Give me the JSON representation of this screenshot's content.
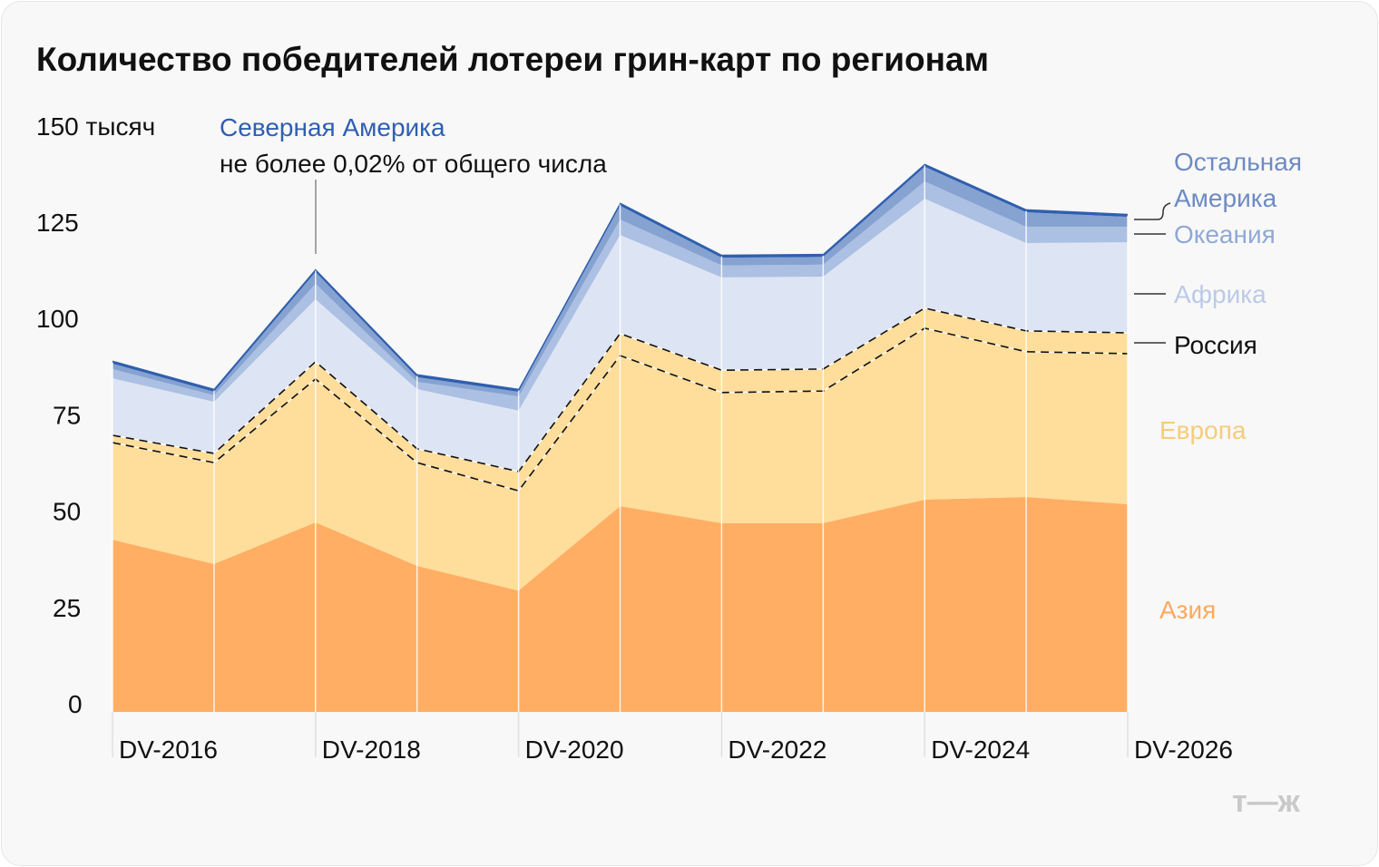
{
  "chart_data": {
    "type": "area",
    "stacked": true,
    "title": "Количество победителей лотереи грин-карт по регионам",
    "ylabel": "150 тысяч",
    "ylim": [
      0,
      150
    ],
    "yticks": [
      "0",
      "25",
      "50",
      "75",
      "100",
      "125",
      "150 тысяч"
    ],
    "x": [
      "DV-2016",
      "DV-2017",
      "DV-2018",
      "DV-2019",
      "DV-2020",
      "DV-2021",
      "DV-2022",
      "DV-2023",
      "DV-2024",
      "DV-2025",
      "DV-2026"
    ],
    "xtick_labels": [
      "DV-2016",
      "DV-2018",
      "DV-2020",
      "DV-2022",
      "DV-2024",
      "DV-2026"
    ],
    "grid": "vertical",
    "series": [
      {
        "name": "Азия",
        "color": "#ffae63",
        "label_color": "#ffa95b",
        "values": [
          44.7,
          38.4,
          49.2,
          37.9,
          31.5,
          53.4,
          49.0,
          49.0,
          55.1,
          55.8,
          53.9
        ]
      },
      {
        "name": "Европа",
        "color": "#ffdd9b",
        "label_color": "#f5cc7c",
        "values": [
          25.2,
          26.3,
          37.2,
          26.8,
          25.9,
          39.1,
          33.9,
          34.3,
          44.5,
          37.7,
          39.1
        ]
      },
      {
        "name": "Россия",
        "color": "#ffdd9b",
        "label_color": "#111111",
        "dashed": true,
        "values": [
          1.9,
          2.4,
          4.5,
          3.6,
          5.0,
          5.7,
          5.8,
          5.7,
          5.2,
          5.4,
          5.4
        ]
      },
      {
        "name": "Африка",
        "color": "#dde4f3",
        "label_color": "#bccae6",
        "values": [
          14.8,
          13.4,
          16.2,
          15.5,
          15.8,
          25.6,
          24.1,
          24.0,
          28.4,
          22.8,
          23.5
        ]
      },
      {
        "name": "Океания",
        "color": "#abc0e2",
        "label_color": "#90a9d6",
        "values": [
          2.4,
          1.7,
          4.0,
          1.9,
          3.7,
          4.0,
          3.1,
          3.1,
          4.5,
          4.2,
          4.0
        ]
      },
      {
        "name": "Остальная Америка",
        "color": "#86a2d1",
        "label_color": "#6e8bc3",
        "values": [
          1.4,
          0.9,
          3.1,
          1.2,
          1.2,
          3.6,
          2.0,
          2.0,
          3.8,
          3.8,
          2.6
        ]
      },
      {
        "name": "Северная Америка",
        "color": "#2f5fae",
        "label_color": "#2f5fb0",
        "values": [
          0.8,
          0.8,
          0.8,
          0.8,
          0.8,
          0.8,
          0.8,
          0.8,
          0.8,
          0.8,
          0.8
        ]
      }
    ],
    "annotations": {
      "north_america_title": "Северная Америка",
      "north_america_note": "не более 0,02% от общего числа"
    },
    "labels": {
      "rest_america_line1": "Остальная",
      "rest_america_line2": "Америка",
      "oceania": "Океания",
      "africa": "Африка",
      "russia": "Россия",
      "europe": "Европа",
      "asia": "Азия"
    }
  },
  "watermark": "т—ж"
}
